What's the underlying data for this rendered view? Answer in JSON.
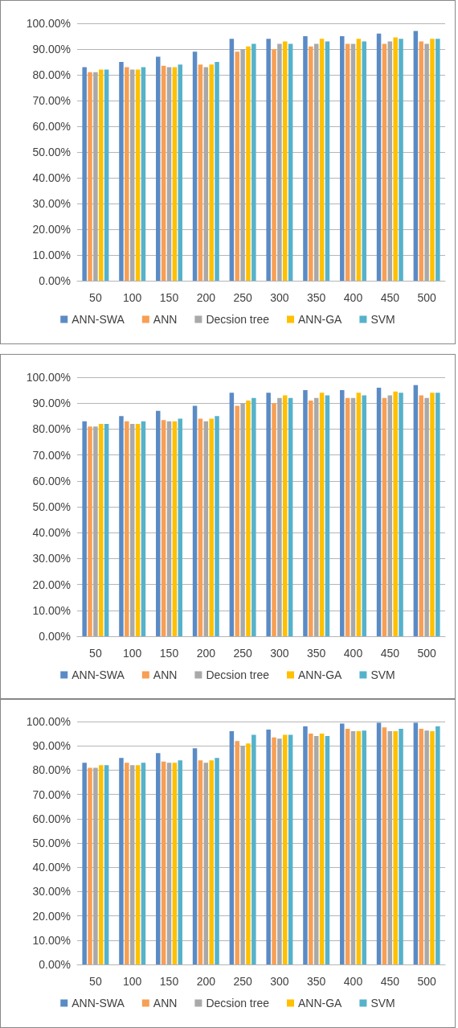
{
  "chart_data": [
    {
      "type": "bar",
      "categories": [
        "50",
        "100",
        "150",
        "200",
        "250",
        "300",
        "350",
        "400",
        "450",
        "500"
      ],
      "ylim": [
        0,
        100
      ],
      "yticks": [
        {
          "value": 0,
          "label": "0.00%"
        },
        {
          "value": 10,
          "label": "10.00%"
        },
        {
          "value": 20,
          "label": "20.00%"
        },
        {
          "value": 30,
          "label": "30.00%"
        },
        {
          "value": 40,
          "label": "40.00%"
        },
        {
          "value": 50,
          "label": "50.00%"
        },
        {
          "value": 60,
          "label": "60.00%"
        },
        {
          "value": 70,
          "label": "70.00%"
        },
        {
          "value": 80,
          "label": "80.00%"
        },
        {
          "value": 90,
          "label": "90.00%"
        },
        {
          "value": 100,
          "label": "100.00%"
        }
      ],
      "grid": "y",
      "legend": "bottom",
      "series": [
        {
          "name": "ANN-SWA",
          "color": "#5b8bc5",
          "values": [
            83,
            85,
            87,
            89,
            94,
            94,
            95,
            95,
            96,
            97
          ]
        },
        {
          "name": "ANN",
          "color": "#f79f54",
          "values": [
            81,
            83,
            83.5,
            84,
            89,
            90,
            91,
            92,
            92,
            93
          ]
        },
        {
          "name": "Decsion tree",
          "color": "#a9a9a9",
          "values": [
            81,
            82,
            83,
            83,
            90,
            92,
            92,
            92,
            93,
            92
          ]
        },
        {
          "name": "ANN-GA",
          "color": "#ffc000",
          "values": [
            82,
            82,
            83,
            84,
            91,
            93,
            94,
            94,
            94.5,
            94
          ]
        },
        {
          "name": "SVM",
          "color": "#56b2cb",
          "values": [
            82,
            83,
            84,
            85,
            92,
            92,
            93,
            93,
            94,
            94
          ]
        }
      ]
    },
    {
      "type": "bar",
      "categories": [
        "50",
        "100",
        "150",
        "200",
        "250",
        "300",
        "350",
        "400",
        "450",
        "500"
      ],
      "ylim": [
        0,
        100
      ],
      "yticks": [
        {
          "value": 0,
          "label": "0.00%"
        },
        {
          "value": 10,
          "label": "10.00%"
        },
        {
          "value": 20,
          "label": "20.00%"
        },
        {
          "value": 30,
          "label": "30.00%"
        },
        {
          "value": 40,
          "label": "40.00%"
        },
        {
          "value": 50,
          "label": "50.00%"
        },
        {
          "value": 60,
          "label": "60.00%"
        },
        {
          "value": 70,
          "label": "70.00%"
        },
        {
          "value": 80,
          "label": "80.00%"
        },
        {
          "value": 90,
          "label": "90.00%"
        },
        {
          "value": 100,
          "label": "100.00%"
        }
      ],
      "grid": "y",
      "legend": "bottom",
      "series": [
        {
          "name": "ANN-SWA",
          "color": "#5b8bc5",
          "values": [
            83,
            85,
            87,
            89,
            94,
            94,
            95,
            95,
            96,
            97
          ]
        },
        {
          "name": "ANN",
          "color": "#f79f54",
          "values": [
            81,
            83,
            83.5,
            84,
            89,
            90,
            91,
            92,
            92,
            93
          ]
        },
        {
          "name": "Decsion tree",
          "color": "#a9a9a9",
          "values": [
            81,
            82,
            83,
            83,
            90,
            92,
            92,
            92,
            93,
            92
          ]
        },
        {
          "name": "ANN-GA",
          "color": "#ffc000",
          "values": [
            82,
            82,
            83,
            84,
            91,
            93,
            94,
            94,
            94.5,
            94
          ]
        },
        {
          "name": "SVM",
          "color": "#56b2cb",
          "values": [
            82,
            83,
            84,
            85,
            92,
            92,
            93,
            93,
            94,
            94
          ]
        }
      ]
    },
    {
      "type": "bar",
      "categories": [
        "50",
        "100",
        "150",
        "200",
        "250",
        "300",
        "350",
        "400",
        "450",
        "500"
      ],
      "ylim": [
        0,
        100
      ],
      "yticks": [
        {
          "value": 0,
          "label": "0.00%"
        },
        {
          "value": 10,
          "label": "10.00%"
        },
        {
          "value": 20,
          "label": "20.00%"
        },
        {
          "value": 30,
          "label": "30.00%"
        },
        {
          "value": 40,
          "label": "40.00%"
        },
        {
          "value": 50,
          "label": "50.00%"
        },
        {
          "value": 60,
          "label": "60.00%"
        },
        {
          "value": 70,
          "label": "70.00%"
        },
        {
          "value": 80,
          "label": "80.00%"
        },
        {
          "value": 90,
          "label": "90.00%"
        },
        {
          "value": 100,
          "label": "100.00%"
        }
      ],
      "grid": "y",
      "legend": "bottom",
      "series": [
        {
          "name": "ANN-SWA",
          "color": "#5b8bc5",
          "values": [
            83,
            85,
            87,
            89,
            96,
            96.7,
            98,
            99.2,
            99.5,
            99.5
          ]
        },
        {
          "name": "ANN",
          "color": "#f79f54",
          "values": [
            81,
            83,
            83.5,
            84,
            92,
            93.5,
            95,
            97,
            97.6,
            97
          ]
        },
        {
          "name": "Decsion tree",
          "color": "#a9a9a9",
          "values": [
            81,
            82,
            83,
            83,
            90,
            93,
            94,
            96,
            96,
            96.3
          ]
        },
        {
          "name": "ANN-GA",
          "color": "#ffc000",
          "values": [
            82,
            82,
            83,
            84,
            91,
            94.5,
            95,
            96,
            96,
            96
          ]
        },
        {
          "name": "SVM",
          "color": "#56b2cb",
          "values": [
            82,
            83,
            84,
            85,
            94.5,
            94.5,
            94,
            96.3,
            97,
            98
          ]
        }
      ]
    }
  ]
}
